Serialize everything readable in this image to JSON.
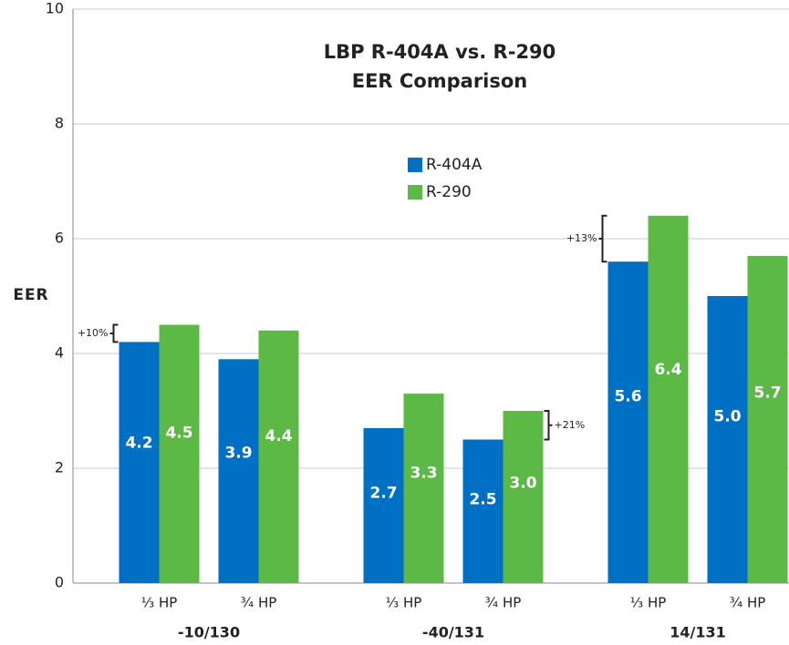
{
  "chart_data": {
    "type": "bar",
    "title": [
      "LBP R-404A vs. R-290",
      "EER Comparison"
    ],
    "ylabel": "EER",
    "categories": [
      "⅓ HP",
      "¾ HP",
      "⅓ HP",
      "¾ HP",
      "⅓ HP",
      "¾ HP"
    ],
    "groups": [
      "-10/130",
      "-40/131",
      "14/131"
    ],
    "series": [
      {
        "name": "R-404A",
        "color": "#0070c4",
        "values": [
          4.2,
          3.9,
          2.7,
          2.5,
          5.6,
          5.0
        ],
        "value_labels": [
          "4.2",
          "3.9",
          "2.7",
          "2.5",
          "5.6",
          "5.0"
        ]
      },
      {
        "name": "R-290",
        "color": "#5cb946",
        "values": [
          4.5,
          4.4,
          3.3,
          3.0,
          6.4,
          5.7
        ],
        "value_labels": [
          "4.5",
          "4.4",
          "3.3",
          "3.0",
          "6.4",
          "5.7"
        ]
      }
    ],
    "annotations": [
      "+10%",
      "+21%",
      "+13%"
    ],
    "ylim": [
      0,
      10
    ],
    "yticks": [
      0,
      2,
      4,
      6,
      8,
      10
    ],
    "grid": true
  }
}
